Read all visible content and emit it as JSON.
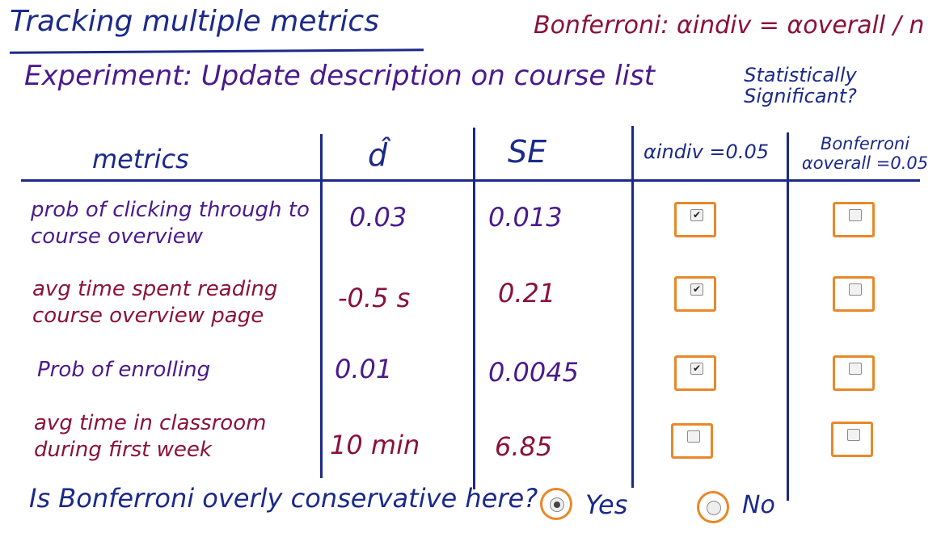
{
  "title": "Tracking multiple metrics",
  "bonferroni_formula": "Bonferroni: αindiv = αoverall / n",
  "experiment": "Experiment: Update description on course list",
  "stat_sig_header": "Statistically Significant?",
  "headers": {
    "metrics": "metrics",
    "dhat": "d̂",
    "se": "SE",
    "alpha_indiv": "αindiv =0.05",
    "bonferroni": "Bonferroni αoverall =0.05"
  },
  "rows": [
    {
      "metric": "prob of clicking through to course overview",
      "dhat": "0.03",
      "se": "0.013",
      "indiv_checked": true,
      "bonf_checked": false
    },
    {
      "metric": "avg time spent reading course overview page",
      "dhat": "-0.5 s",
      "se": "0.21",
      "indiv_checked": true,
      "bonf_checked": false
    },
    {
      "metric": "Prob of enrolling",
      "dhat": "0.01",
      "se": "0.0045",
      "indiv_checked": true,
      "bonf_checked": false
    },
    {
      "metric": "avg time in classroom during first week",
      "dhat": "10 min",
      "se": "6.85",
      "indiv_checked": false,
      "bonf_checked": false
    }
  ],
  "question": "Is Bonferroni overly conservative here?",
  "options": {
    "yes": "Yes",
    "no": "No",
    "selected": "yes"
  },
  "colors": {
    "ink_blue": "#1b2a8a",
    "ink_purple": "#4a1a8c",
    "ink_maroon": "#8a1238",
    "box_orange": "#e8882a"
  }
}
